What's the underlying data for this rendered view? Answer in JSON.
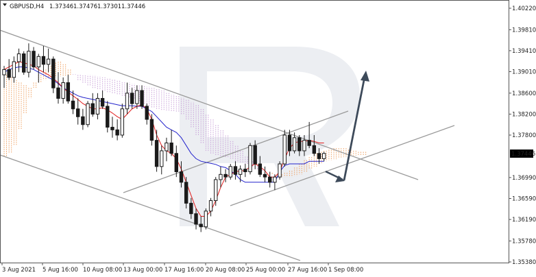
{
  "header": {
    "dropdown_icon": "triangle-down-icon",
    "symbol": "GBPUSD,H4",
    "open": "1.37346",
    "high": "1.37476",
    "low": "1.37301",
    "close": "1.37446"
  },
  "chart_data": {
    "type": "candlestick",
    "instrument": "GBPUSD",
    "timeframe": "H4",
    "y_ticks": [
      "1.40220",
      "1.39810",
      "1.39410",
      "1.39010",
      "1.38600",
      "1.38200",
      "1.37800",
      "1.37446",
      "1.36990",
      "1.36590",
      "1.36190",
      "1.35780",
      "1.35380"
    ],
    "ylim": [
      1.3538,
      1.4022
    ],
    "x_ticks": [
      "3 Aug 2021",
      "5 Aug 16:00",
      "10 Aug 08:00",
      "13 Aug 00:00",
      "17 Aug 16:00",
      "20 Aug 08:00",
      "25 Aug 00:00",
      "27 Aug 16:00",
      "1 Sep 08:00"
    ],
    "current_price": "1.37446",
    "colors": {
      "bull": "#1a1a1a",
      "bear": "#d61a1a",
      "tenkan": "#e21c1c",
      "kijun": "#2222cc",
      "cloud_bull": "#f0a060",
      "cloud_bear": "#c8a0d8",
      "channel": "#9a9a9a",
      "arrow": "#3d4a5a",
      "watermark": "#eceef2"
    },
    "candles": [
      [
        1.3895,
        1.3912,
        1.387,
        1.3905
      ],
      [
        1.3905,
        1.3925,
        1.3885,
        1.389
      ],
      [
        1.389,
        1.393,
        1.388,
        1.392
      ],
      [
        1.392,
        1.3945,
        1.39,
        1.3935
      ],
      [
        1.3935,
        1.394,
        1.3895,
        1.39
      ],
      [
        1.39,
        1.3955,
        1.389,
        1.394
      ],
      [
        1.394,
        1.3948,
        1.3905,
        1.391
      ],
      [
        1.391,
        1.3935,
        1.388,
        1.393
      ],
      [
        1.393,
        1.395,
        1.39,
        1.3915
      ],
      [
        1.3915,
        1.3945,
        1.39,
        1.3925
      ],
      [
        1.3925,
        1.393,
        1.386,
        1.387
      ],
      [
        1.387,
        1.39,
        1.384,
        1.385
      ],
      [
        1.385,
        1.389,
        1.384,
        1.388
      ],
      [
        1.388,
        1.3895,
        1.384,
        1.3845
      ],
      [
        1.3845,
        1.3865,
        1.382,
        1.383
      ],
      [
        1.383,
        1.385,
        1.38,
        1.3815
      ],
      [
        1.3815,
        1.383,
        1.379,
        1.38
      ],
      [
        1.38,
        1.3845,
        1.3795,
        1.384
      ],
      [
        1.384,
        1.386,
        1.3815,
        1.382
      ],
      [
        1.382,
        1.386,
        1.381,
        1.385
      ],
      [
        1.385,
        1.3865,
        1.383,
        1.3835
      ],
      [
        1.3835,
        1.3845,
        1.3785,
        1.3795
      ],
      [
        1.3795,
        1.3815,
        1.3775,
        1.379
      ],
      [
        1.379,
        1.381,
        1.377,
        1.378
      ],
      [
        1.378,
        1.384,
        1.3775,
        1.383
      ],
      [
        1.383,
        1.388,
        1.382,
        1.386
      ],
      [
        1.386,
        1.387,
        1.383,
        1.384
      ],
      [
        1.384,
        1.3875,
        1.383,
        1.3865
      ],
      [
        1.3865,
        1.3875,
        1.383,
        1.3835
      ],
      [
        1.3835,
        1.384,
        1.38,
        1.381
      ],
      [
        1.381,
        1.382,
        1.376,
        1.377
      ],
      [
        1.377,
        1.379,
        1.371,
        1.372
      ],
      [
        1.372,
        1.376,
        1.3705,
        1.375
      ],
      [
        1.375,
        1.3775,
        1.373,
        1.3765
      ],
      [
        1.3765,
        1.379,
        1.374,
        1.3745
      ],
      [
        1.3745,
        1.376,
        1.37,
        1.371
      ],
      [
        1.371,
        1.373,
        1.368,
        1.369
      ],
      [
        1.369,
        1.37,
        1.364,
        1.365
      ],
      [
        1.365,
        1.366,
        1.362,
        1.363
      ],
      [
        1.363,
        1.364,
        1.36,
        1.361
      ],
      [
        1.361,
        1.3625,
        1.3595,
        1.3605
      ],
      [
        1.3605,
        1.364,
        1.36,
        1.3635
      ],
      [
        1.3635,
        1.366,
        1.3625,
        1.3655
      ],
      [
        1.3655,
        1.37,
        1.3645,
        1.3695
      ],
      [
        1.3695,
        1.372,
        1.368,
        1.3705
      ],
      [
        1.3705,
        1.3715,
        1.369,
        1.37
      ],
      [
        1.37,
        1.3725,
        1.3695,
        1.372
      ],
      [
        1.372,
        1.373,
        1.3695,
        1.3705
      ],
      [
        1.3705,
        1.3722,
        1.369,
        1.3715
      ],
      [
        1.3715,
        1.3725,
        1.37,
        1.371
      ],
      [
        1.371,
        1.3765,
        1.3705,
        1.376
      ],
      [
        1.376,
        1.377,
        1.3715,
        1.3725
      ],
      [
        1.3725,
        1.374,
        1.37,
        1.3705
      ],
      [
        1.3705,
        1.372,
        1.369,
        1.37
      ],
      [
        1.37,
        1.371,
        1.368,
        1.369
      ],
      [
        1.369,
        1.3705,
        1.3675,
        1.37
      ],
      [
        1.37,
        1.373,
        1.3695,
        1.3725
      ],
      [
        1.3725,
        1.379,
        1.372,
        1.378
      ],
      [
        1.378,
        1.379,
        1.374,
        1.375
      ],
      [
        1.375,
        1.3785,
        1.3745,
        1.3775
      ],
      [
        1.3775,
        1.378,
        1.374,
        1.375
      ],
      [
        1.375,
        1.378,
        1.374,
        1.377
      ],
      [
        1.377,
        1.3805,
        1.3755,
        1.376
      ],
      [
        1.376,
        1.378,
        1.374,
        1.3745
      ],
      [
        1.3745,
        1.3755,
        1.3725,
        1.3735
      ],
      [
        1.3735,
        1.3748,
        1.373,
        1.3745
      ]
    ],
    "tenkan": [
      1.3905,
      1.391,
      1.3915,
      1.392,
      1.3918,
      1.3915,
      1.3912,
      1.3905,
      1.39,
      1.3895,
      1.3888,
      1.388,
      1.387,
      1.3862,
      1.3855,
      1.3848,
      1.384,
      1.3835,
      1.383,
      1.383,
      1.3832,
      1.3828,
      1.3822,
      1.3815,
      1.381,
      1.382,
      1.383,
      1.3835,
      1.3838,
      1.383,
      1.381,
      1.378,
      1.376,
      1.375,
      1.3745,
      1.3735,
      1.3715,
      1.369,
      1.3665,
      1.364,
      1.3625,
      1.3625,
      1.3635,
      1.3655,
      1.368,
      1.37,
      1.3705,
      1.371,
      1.3712,
      1.3712,
      1.372,
      1.3725,
      1.372,
      1.3712,
      1.37,
      1.37,
      1.371,
      1.3735,
      1.3755,
      1.3765,
      1.3768,
      1.3768,
      1.377,
      1.3768,
      1.3765,
      1.3765
    ],
    "kijun": [
      1.39,
      1.3905,
      1.3908,
      1.391,
      1.391,
      1.3908,
      1.3905,
      1.39,
      1.3895,
      1.389,
      1.3885,
      1.3878,
      1.387,
      1.3865,
      1.386,
      1.3855,
      1.3852,
      1.385,
      1.3848,
      1.3846,
      1.3844,
      1.3842,
      1.384,
      1.3838,
      1.3836,
      1.3836,
      1.3836,
      1.3835,
      1.3835,
      1.383,
      1.3825,
      1.3815,
      1.3805,
      1.3795,
      1.379,
      1.3785,
      1.3775,
      1.376,
      1.3745,
      1.3735,
      1.373,
      1.3728,
      1.3726,
      1.3724,
      1.372,
      1.3718,
      1.3712,
      1.3705,
      1.3695,
      1.369,
      1.369,
      1.369,
      1.369,
      1.369,
      1.369,
      1.369,
      1.371,
      1.3722,
      1.3725,
      1.3725,
      1.3725,
      1.3725,
      1.373,
      1.373,
      1.373,
      1.373
    ],
    "cloud_a": [
      1.3895,
      1.389,
      1.3885,
      1.388,
      1.3875,
      1.387,
      1.388,
      1.3895,
      1.3905,
      1.3912,
      1.3918,
      1.392,
      1.3915,
      1.3905,
      1.3895,
      1.3885,
      1.388,
      1.3875,
      1.387,
      1.3868,
      1.3865,
      1.3862,
      1.386,
      1.3858,
      1.3855,
      1.3852,
      1.385,
      1.3845,
      1.384,
      1.3836,
      1.3833,
      1.383,
      1.3828,
      1.3827,
      1.3826,
      1.3825,
      1.382,
      1.381,
      1.3795,
      1.378,
      1.3765,
      1.375,
      1.3745,
      1.3742,
      1.374,
      1.3738,
      1.3735,
      1.373,
      1.3728,
      1.3725,
      1.372,
      1.3715,
      1.3712,
      1.371,
      1.3708,
      1.3705,
      1.3705,
      1.3708,
      1.3712,
      1.3718,
      1.3725,
      1.3732,
      1.3738,
      1.3745,
      1.3748,
      1.375,
      1.3752,
      1.3755,
      1.3755,
      1.3755,
      1.3752,
      1.375,
      1.3748,
      1.3748
    ],
    "cloud_b": [
      1.374,
      1.3745,
      1.376,
      1.379,
      1.382,
      1.385,
      1.387,
      1.388,
      1.3885,
      1.3888,
      1.389,
      1.3892,
      1.3893,
      1.3895,
      1.3896,
      1.3896,
      1.3895,
      1.3895,
      1.3894,
      1.3892,
      1.389,
      1.3888,
      1.3886,
      1.3884,
      1.3882,
      1.388,
      1.3878,
      1.3876,
      1.3874,
      1.3872,
      1.387,
      1.3868,
      1.3865,
      1.3862,
      1.3858,
      1.3855,
      1.3852,
      1.3848,
      1.3843,
      1.3838,
      1.383,
      1.382,
      1.381,
      1.38,
      1.379,
      1.378,
      1.377,
      1.376,
      1.375,
      1.374,
      1.373,
      1.3722,
      1.3715,
      1.371,
      1.3705,
      1.3702,
      1.37,
      1.37,
      1.37,
      1.3702,
      1.3705,
      1.371,
      1.3715,
      1.372,
      1.3725,
      1.373,
      1.3732,
      1.3734,
      1.3736,
      1.3738,
      1.374,
      1.3741,
      1.3742,
      1.3742
    ]
  }
}
